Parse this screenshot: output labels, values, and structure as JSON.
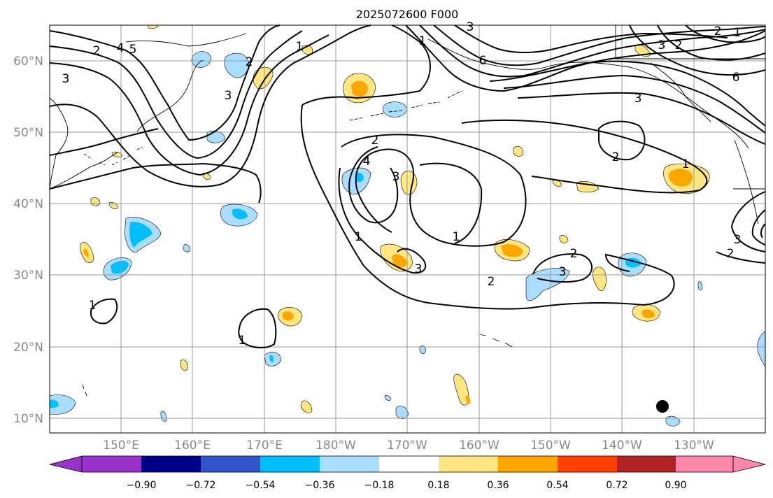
{
  "title": "2025072600 F000",
  "lat_labels": [
    "60°N",
    "50°N",
    "40°N",
    "30°N",
    "20°N",
    "10°N"
  ],
  "lon_labels": [
    "150°E",
    "160°E",
    "170°E",
    "180°W",
    "170°W",
    "160°W",
    "150°W",
    "140°W",
    "130°W"
  ],
  "colorbar": {
    "ticks": [
      "−0.90",
      "−0.72",
      "−0.54",
      "−0.36",
      "−0.18",
      "0.18",
      "0.36",
      "0.54",
      "0.72",
      "0.90"
    ],
    "colors": [
      "#9933cc",
      "#000088",
      "#3355cc",
      "#00bfff",
      "#aaddff",
      "#ffffff",
      "#ffe680",
      "#ffa500",
      "#ff4000",
      "#b22222",
      "#ff88aa"
    ]
  },
  "contour_labels": [
    "2",
    "4",
    "5",
    "1",
    "3",
    "3",
    "2",
    "1",
    "3",
    "6",
    "2",
    "1",
    "3",
    "2",
    "6",
    "3",
    "2",
    "4",
    "3",
    "1",
    "2",
    "1",
    "3",
    "2",
    "1",
    "1",
    "2",
    "3",
    "3",
    "2"
  ],
  "marker": "storm-center-dot"
}
